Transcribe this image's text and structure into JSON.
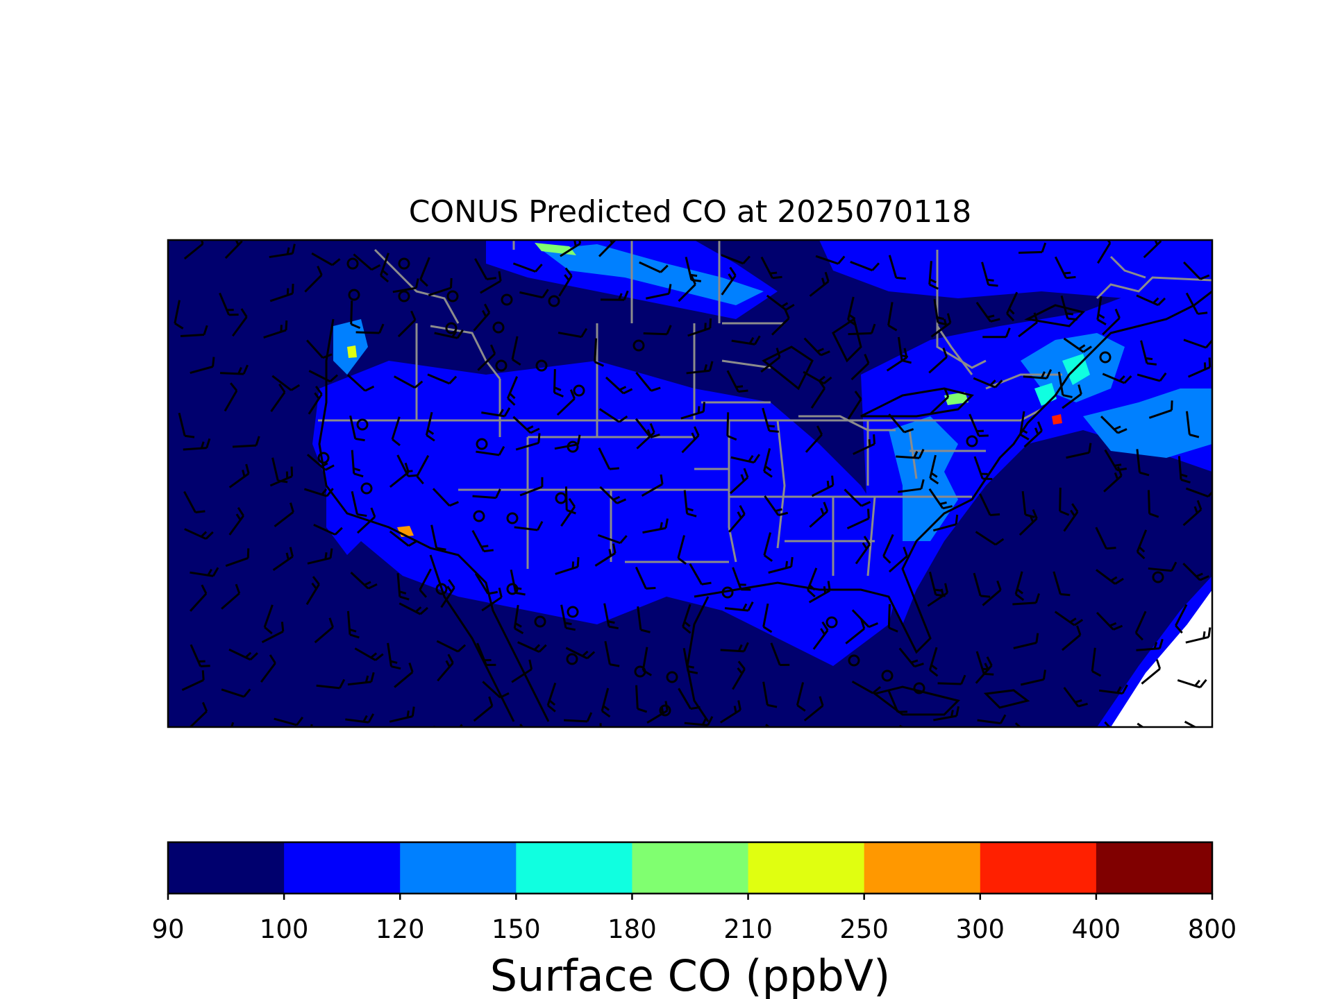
{
  "title": "CONUS Predicted CO at 2025070118",
  "colorbar": {
    "label": "Surface CO (ppbV)",
    "levels": [
      "90",
      "100",
      "120",
      "150",
      "180",
      "210",
      "250",
      "300",
      "400",
      "800"
    ],
    "colors": [
      "#00006e",
      "#0000fc",
      "#0080ff",
      "#10ffe0",
      "#80ff70",
      "#e0ff10",
      "#ff9800",
      "#ff2000",
      "#800000"
    ]
  },
  "map": {
    "background_color": "#00006e",
    "state_border_color": "#8c8c8c",
    "coastline_color": "#000000",
    "wind_barb_color": "#000000"
  }
}
